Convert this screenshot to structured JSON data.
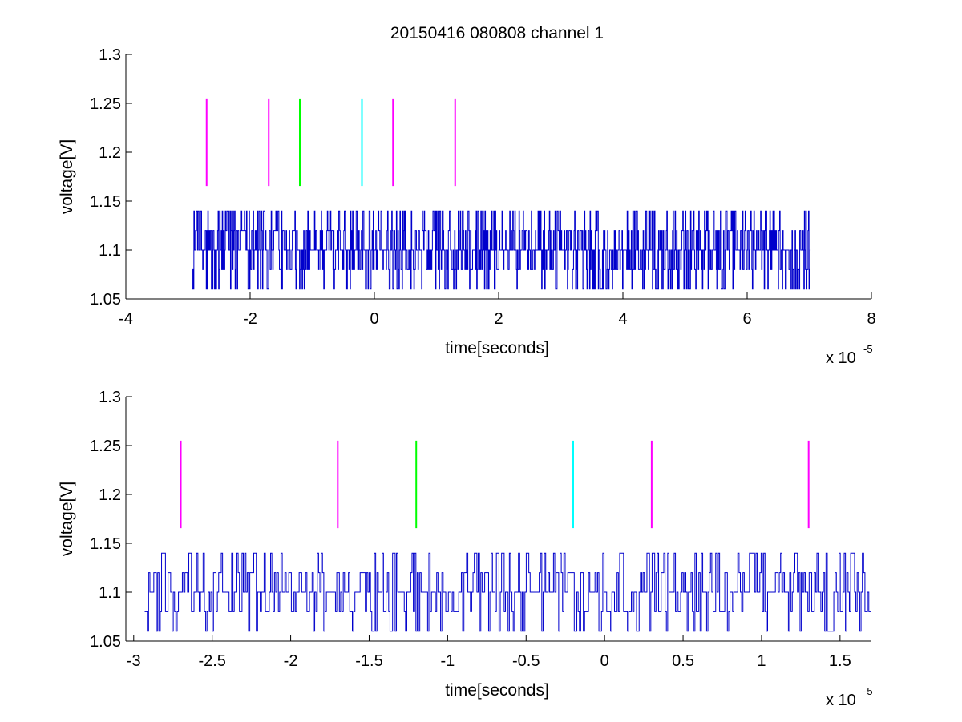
{
  "figure": {
    "title": "20150416 080808 channel 1"
  },
  "chart_data": [
    {
      "type": "line",
      "xlabel": "time[seconds]",
      "ylabel": "voltage[V]",
      "xlim": [
        -4,
        8
      ],
      "ylim": [
        1.05,
        1.3
      ],
      "x_ticks": [
        -4,
        -2,
        0,
        2,
        4,
        6,
        8
      ],
      "x_tick_labels": [
        "-4",
        "-2",
        "0",
        "2",
        "4",
        "6",
        "8"
      ],
      "y_ticks": [
        1.05,
        1.1,
        1.15,
        1.2,
        1.25,
        1.3
      ],
      "y_tick_labels": [
        "1.05",
        "1.1",
        "1.15",
        "1.2",
        "1.25",
        "1.3"
      ],
      "x_multiplier": {
        "base": "x 10",
        "exponent": "-5"
      },
      "grid": false,
      "legend": "none",
      "signal": {
        "color": "#0000cc",
        "x_start": -2.93,
        "x_end": 7.02,
        "samples": 1200,
        "levels": [
          1.06,
          1.08,
          1.1,
          1.12,
          1.14
        ],
        "baseline": 1.1,
        "seed": 1416
      },
      "markers": [
        {
          "x": -2.7,
          "y_bottom": 1.1655,
          "y_top": 1.255,
          "color": "#ff00ff"
        },
        {
          "x": -1.7,
          "y_bottom": 1.1655,
          "y_top": 1.255,
          "color": "#ff00ff"
        },
        {
          "x": -1.2,
          "y_bottom": 1.1655,
          "y_top": 1.255,
          "color": "#00ff00"
        },
        {
          "x": -0.2,
          "y_bottom": 1.1655,
          "y_top": 1.255,
          "color": "#00ffff"
        },
        {
          "x": 0.3,
          "y_bottom": 1.1655,
          "y_top": 1.255,
          "color": "#ff00ff"
        },
        {
          "x": 1.3,
          "y_bottom": 1.1655,
          "y_top": 1.255,
          "color": "#ff00ff"
        }
      ]
    },
    {
      "type": "line",
      "xlabel": "time[seconds]",
      "ylabel": "voltage[V]",
      "xlim": [
        -3.05,
        1.7
      ],
      "ylim": [
        1.05,
        1.3
      ],
      "x_ticks": [
        -3,
        -2.5,
        -2,
        -1.5,
        -1,
        -0.5,
        0,
        0.5,
        1,
        1.5
      ],
      "x_tick_labels": [
        "-3",
        "-2.5",
        "-2",
        "-1.5",
        "-1",
        "-0.5",
        "0",
        "0.5",
        "1",
        "1.5"
      ],
      "y_ticks": [
        1.05,
        1.1,
        1.15,
        1.2,
        1.25,
        1.3
      ],
      "y_tick_labels": [
        "1.05",
        "1.1",
        "1.15",
        "1.2",
        "1.25",
        "1.3"
      ],
      "x_multiplier": {
        "base": "x 10",
        "exponent": "-5"
      },
      "grid": false,
      "legend": "none",
      "signal": {
        "color": "#0000cc",
        "x_start": -2.93,
        "x_end": 1.7,
        "samples": 560,
        "levels": [
          1.06,
          1.08,
          1.1,
          1.12,
          1.14
        ],
        "baseline": 1.1,
        "seed": 808
      },
      "markers": [
        {
          "x": -2.7,
          "y_bottom": 1.1655,
          "y_top": 1.255,
          "color": "#ff00ff"
        },
        {
          "x": -1.7,
          "y_bottom": 1.1655,
          "y_top": 1.255,
          "color": "#ff00ff"
        },
        {
          "x": -1.2,
          "y_bottom": 1.1655,
          "y_top": 1.255,
          "color": "#00ff00"
        },
        {
          "x": -0.2,
          "y_bottom": 1.1655,
          "y_top": 1.255,
          "color": "#00ffff"
        },
        {
          "x": 0.3,
          "y_bottom": 1.1655,
          "y_top": 1.255,
          "color": "#ff00ff"
        },
        {
          "x": 1.3,
          "y_bottom": 1.1655,
          "y_top": 1.255,
          "color": "#ff00ff"
        }
      ]
    }
  ]
}
